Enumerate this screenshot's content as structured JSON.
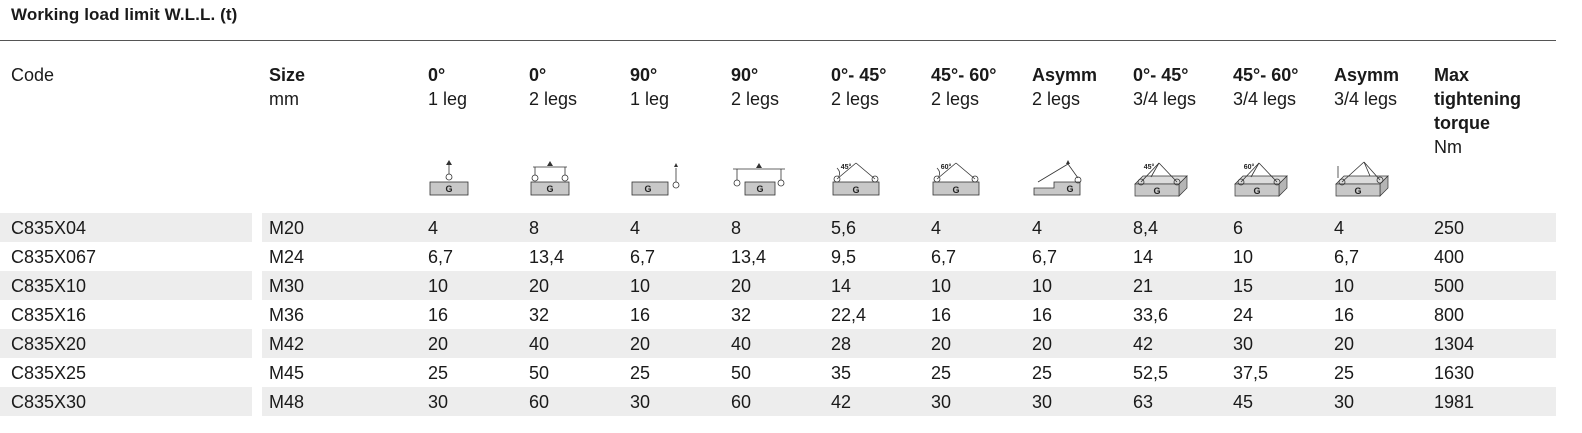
{
  "title": "Working load limit W.L.L. (t)",
  "headers": [
    {
      "bold": "",
      "lines": [
        "Code"
      ]
    },
    {
      "bold": "Size",
      "lines": [
        "mm"
      ]
    },
    {
      "bold": "0°",
      "lines": [
        "1 leg"
      ]
    },
    {
      "bold": "0°",
      "lines": [
        "2 legs"
      ]
    },
    {
      "bold": "90°",
      "lines": [
        "1 leg"
      ]
    },
    {
      "bold": "90°",
      "lines": [
        "2 legs"
      ]
    },
    {
      "bold": "0°- 45°",
      "lines": [
        "2 legs"
      ]
    },
    {
      "bold": "45°- 60°",
      "lines": [
        "2 legs"
      ]
    },
    {
      "bold": "Asymm",
      "lines": [
        "2 legs"
      ]
    },
    {
      "bold": "0°- 45°",
      "lines": [
        "3/4 legs"
      ]
    },
    {
      "bold": "45°- 60°",
      "lines": [
        "3/4 legs"
      ]
    },
    {
      "bold": "Asymm",
      "lines": [
        "3/4 legs"
      ]
    },
    {
      "bold": "Max tightening torque",
      "lines": [
        "Nm"
      ]
    }
  ],
  "pictograms": [
    {
      "icon": "single-leg-vertical-icon",
      "labels": [
        "G"
      ]
    },
    {
      "icon": "two-leg-vertical-icon",
      "labels": [
        "G"
      ]
    },
    {
      "icon": "single-leg-sideways-icon",
      "labels": [
        "G"
      ]
    },
    {
      "icon": "two-leg-sideways-icon",
      "labels": [
        "G"
      ]
    },
    {
      "icon": "two-leg-0-45-icon",
      "labels": [
        "G",
        "45°"
      ]
    },
    {
      "icon": "two-leg-45-60-icon",
      "labels": [
        "G",
        "60°"
      ]
    },
    {
      "icon": "two-leg-asymmetric-icon",
      "labels": [
        "G"
      ]
    },
    {
      "icon": "multi-leg-0-45-icon",
      "labels": [
        "G",
        "45°"
      ]
    },
    {
      "icon": "multi-leg-45-60-icon",
      "labels": [
        "G",
        "60°"
      ]
    },
    {
      "icon": "multi-leg-asymmetric-icon",
      "labels": [
        "G"
      ]
    }
  ],
  "rows": [
    [
      "C835X04",
      "M20",
      "4",
      "8",
      "4",
      "8",
      "5,6",
      "4",
      "4",
      "8,4",
      "6",
      "4",
      "250"
    ],
    [
      "C835X067",
      "M24",
      "6,7",
      "13,4",
      "6,7",
      "13,4",
      "9,5",
      "6,7",
      "6,7",
      "14",
      "10",
      "6,7",
      "400"
    ],
    [
      "C835X10",
      "M30",
      "10",
      "20",
      "10",
      "20",
      "14",
      "10",
      "10",
      "21",
      "15",
      "10",
      "500"
    ],
    [
      "C835X16",
      "M36",
      "16",
      "32",
      "16",
      "32",
      "22,4",
      "16",
      "16",
      "33,6",
      "24",
      "16",
      "800"
    ],
    [
      "C835X20",
      "M42",
      "20",
      "40",
      "20",
      "40",
      "28",
      "20",
      "20",
      "42",
      "30",
      "20",
      "1304"
    ],
    [
      "C835X25",
      "M45",
      "25",
      "50",
      "25",
      "50",
      "35",
      "25",
      "25",
      "52,5",
      "37,5",
      "25",
      "1630"
    ],
    [
      "C835X30",
      "M48",
      "30",
      "60",
      "30",
      "60",
      "42",
      "30",
      "30",
      "63",
      "45",
      "30",
      "1981"
    ]
  ]
}
